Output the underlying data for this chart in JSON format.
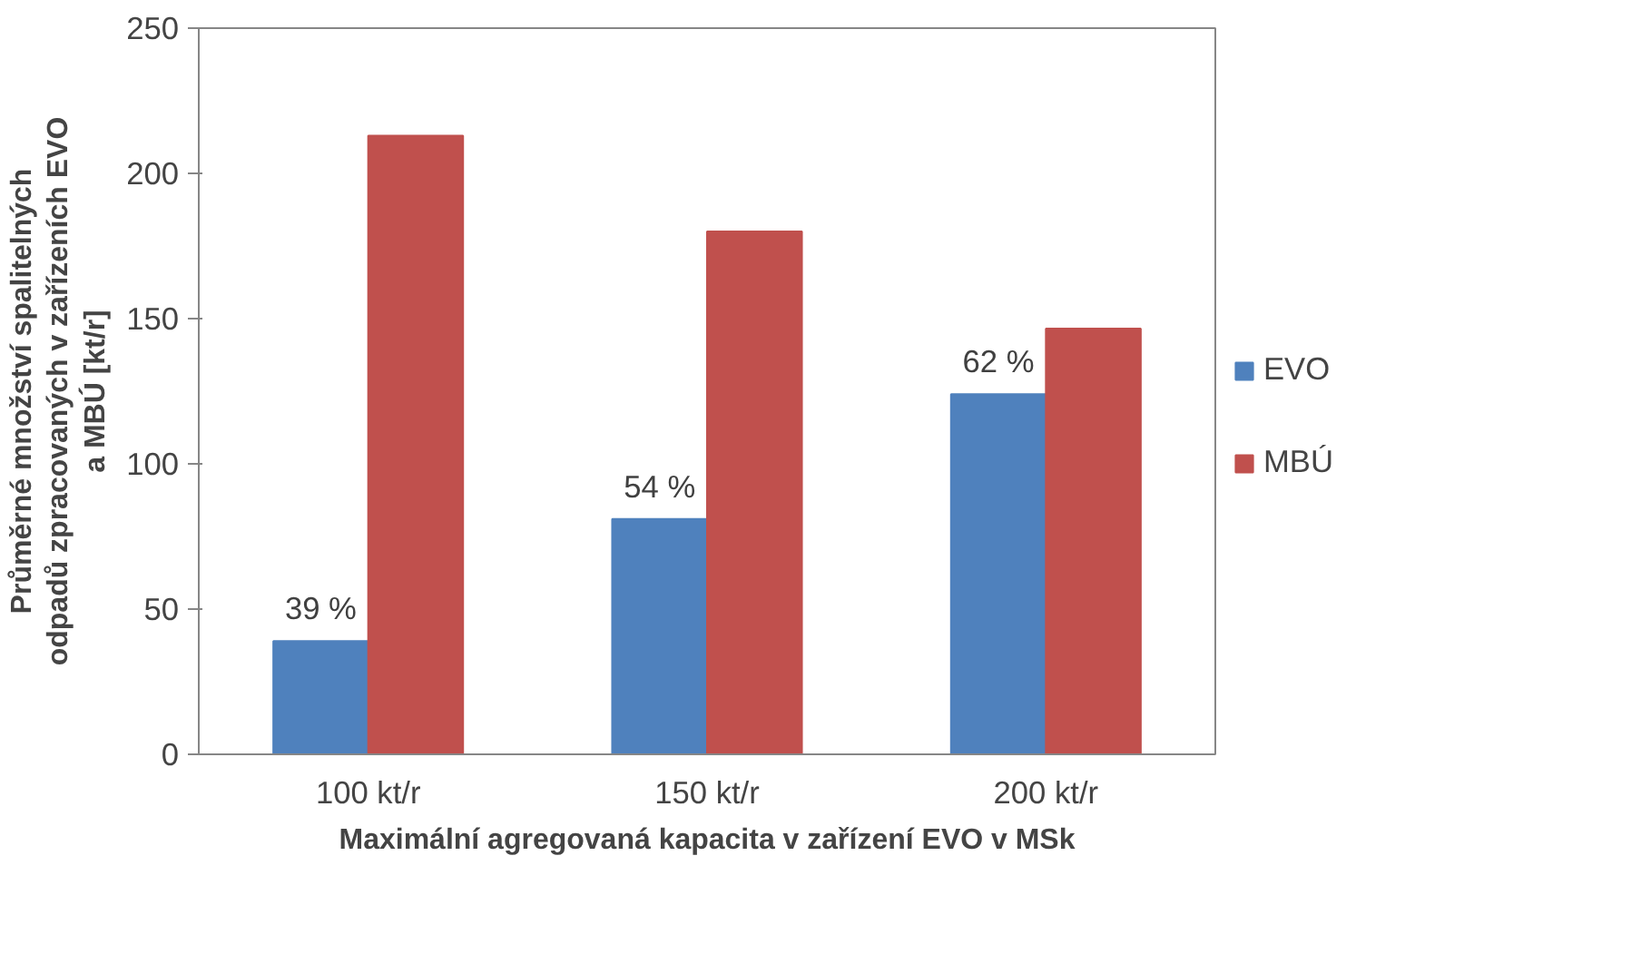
{
  "chart_data": {
    "type": "bar",
    "xlabel": "Maximální agregovaná kapacita v zařízení EVO v MSk",
    "ylabel": "Průměrné množství spalitelných\nodpadů zpracovaných v zařízeních EVO\na MBÚ [kt/r]",
    "categories": [
      "100 kt/r",
      "150 kt/r",
      "200 kt/r"
    ],
    "series": [
      {
        "name": "EVO",
        "color": "#4f81bd",
        "values": [
          39,
          81,
          124
        ]
      },
      {
        "name": "MBÚ",
        "color": "#c0504d",
        "values": [
          213,
          180,
          146.6
        ]
      }
    ],
    "annotations": [
      {
        "text": "39 %",
        "x": "100 kt/r",
        "y": 39
      },
      {
        "text": "54 %",
        "x": "150 kt/r",
        "y": 81
      },
      {
        "text": "62 %",
        "x": "200 kt/r",
        "y": 124
      }
    ],
    "ylim": [
      0,
      250
    ],
    "yticks": [
      0,
      50,
      100,
      150,
      200,
      250
    ],
    "grid": false,
    "legend": "right"
  }
}
